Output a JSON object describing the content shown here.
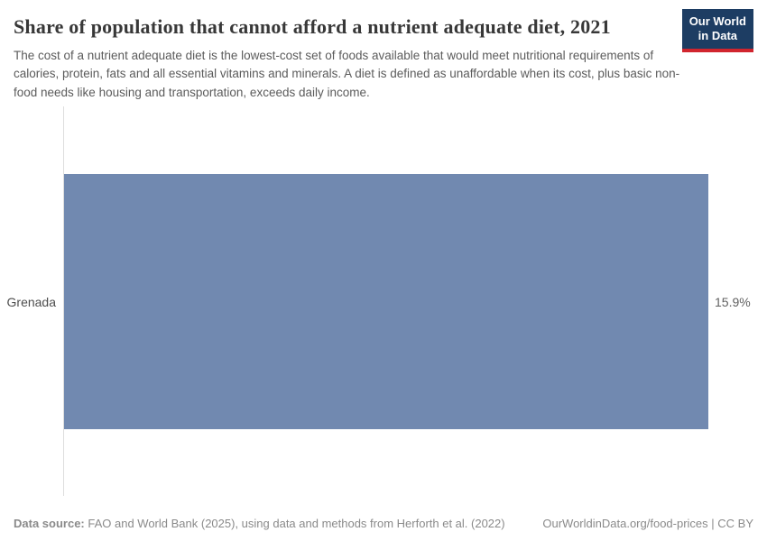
{
  "header": {
    "title": "Share of population that cannot afford a nutrient adequate diet, 2021",
    "subtitle": "The cost of a nutrient adequate diet is the lowest-cost set of foods available that would meet nutritional requirements of calories, protein, fats and all essential vitamins and minerals. A diet is defined as unaffordable when its cost, plus basic non-food needs like housing and transportation, exceeds daily income.",
    "logo": {
      "line1": "Our World",
      "line2": "in Data",
      "bg_color": "#1d3d63",
      "accent_color": "#d1252e"
    }
  },
  "chart_data": {
    "type": "bar",
    "orientation": "horizontal",
    "categories": [
      "Grenada"
    ],
    "values": [
      15.9
    ],
    "value_labels": [
      "15.9%"
    ],
    "xlim": [
      0,
      15.9
    ],
    "xlabel": "",
    "ylabel": "",
    "grid": false,
    "legend": false,
    "bar_color": "#7189b0",
    "axis_line_color": "#dedede",
    "title": "Share of population that cannot afford a nutrient adequate diet, 2021"
  },
  "footer": {
    "source_label": "Data source:",
    "source_text": "FAO and World Bank (2025), using data and methods from Herforth et al. (2022)",
    "right_text": "OurWorldinData.org/food-prices | CC BY"
  }
}
